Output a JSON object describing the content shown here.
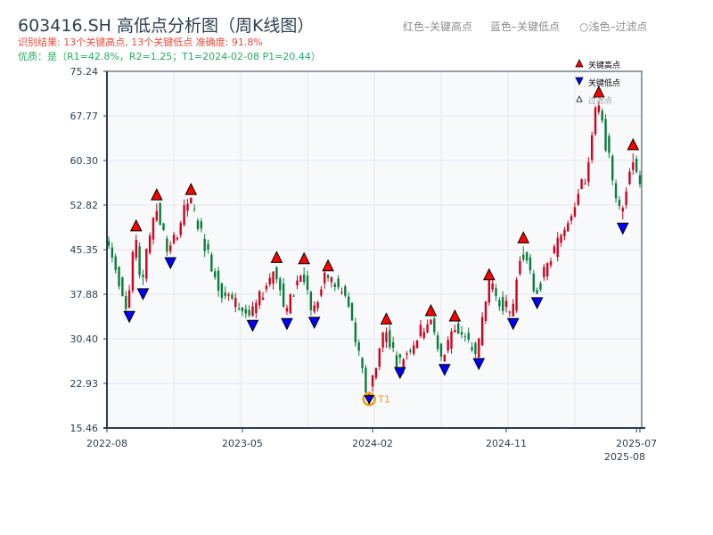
{
  "header": {
    "title": "603416.SH 高低点分析图（周K线图）",
    "result_line": "识别结果: 13个关键高点, 13个关键低点   准确度: 91.8%",
    "quality_line": "优质：是（R1=42.8%，R2=1.25；T1=2024-02-08 P1=20.44）",
    "legend_red": "红色–关键高点",
    "legend_blue": "蓝色–关键低点",
    "legend_light": "○浅色–过滤点"
  },
  "colors": {
    "up": "#d0021b",
    "down": "#0a7d3b",
    "high": "#ff0000",
    "low": "#0000ff",
    "t1": "#f39c12",
    "axis": "#2c3e50",
    "plot_bg": "#f7f9fb"
  },
  "chart_data": {
    "type": "candlestick",
    "title": "603416.SH 高低点分析图（周K线图）",
    "ylim": [
      15.46,
      75.24
    ],
    "yticks": [
      "75.24",
      "67.77",
      "60.30",
      "52.82",
      "45.35",
      "37.88",
      "30.40",
      "22.93",
      "15.46"
    ],
    "weeks": 156,
    "xticks": [
      {
        "week": 0,
        "label": "2022-08"
      },
      {
        "week": 39,
        "label": "2023-05"
      },
      {
        "week": 77,
        "label": "2024-02"
      },
      {
        "week": 116,
        "label": "2024-11"
      },
      {
        "week": 154,
        "label": "2025-07"
      },
      {
        "week": 155,
        "label": "2025-08"
      }
    ],
    "price_path": [
      [
        0,
        46.8
      ],
      [
        6,
        35.6
      ],
      [
        8,
        47.9
      ],
      [
        10,
        39.4
      ],
      [
        14,
        53.1
      ],
      [
        18,
        44.6
      ],
      [
        24,
        54.0
      ],
      [
        33,
        38.5
      ],
      [
        42,
        34.1
      ],
      [
        49,
        42.6
      ],
      [
        52,
        34.4
      ],
      [
        57,
        42.4
      ],
      [
        60,
        34.6
      ],
      [
        64,
        41.2
      ],
      [
        70,
        37.0
      ],
      [
        76,
        20.44
      ],
      [
        81,
        32.3
      ],
      [
        85,
        26.2
      ],
      [
        94,
        33.7
      ],
      [
        98,
        26.7
      ],
      [
        101,
        32.8
      ],
      [
        108,
        27.7
      ],
      [
        111,
        39.7
      ],
      [
        118,
        34.4
      ],
      [
        121,
        45.9
      ],
      [
        125,
        37.9
      ],
      [
        140,
        58.0
      ],
      [
        143,
        70.3
      ],
      [
        150,
        50.4
      ],
      [
        153,
        61.5
      ],
      [
        155,
        57.3
      ]
    ],
    "key_highs": [
      [
        8,
        47.9
      ],
      [
        14,
        53.1
      ],
      [
        24,
        54.0
      ],
      [
        49,
        42.6
      ],
      [
        57,
        42.4
      ],
      [
        64,
        41.2
      ],
      [
        81,
        32.3
      ],
      [
        94,
        33.7
      ],
      [
        101,
        32.8
      ],
      [
        111,
        39.7
      ],
      [
        121,
        45.9
      ],
      [
        143,
        70.3
      ],
      [
        153,
        61.5
      ]
    ],
    "key_lows": [
      [
        6,
        35.6
      ],
      [
        10,
        39.4
      ],
      [
        18,
        44.6
      ],
      [
        42,
        34.1
      ],
      [
        52,
        34.4
      ],
      [
        60,
        34.6
      ],
      [
        76,
        20.44
      ],
      [
        85,
        26.2
      ],
      [
        98,
        26.7
      ],
      [
        108,
        27.7
      ],
      [
        118,
        34.4
      ],
      [
        125,
        37.9
      ],
      [
        150,
        50.4
      ]
    ],
    "t1": {
      "week": 76,
      "price": 20.44,
      "label": "T1"
    },
    "legend": [
      "关键高点",
      "关键低点",
      "过滤点"
    ],
    "legend_position": "top-right"
  }
}
